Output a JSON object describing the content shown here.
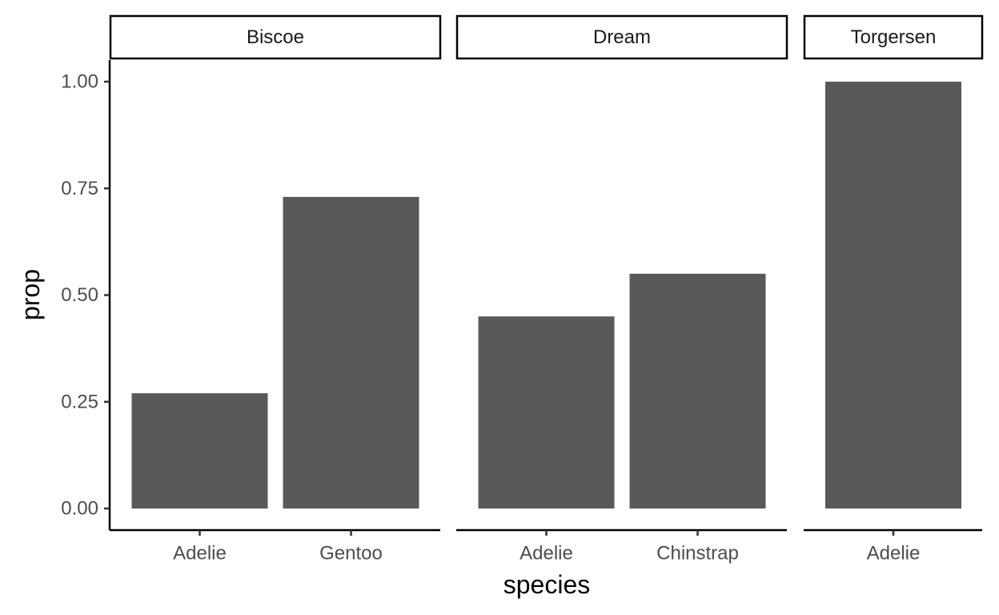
{
  "chart_data": {
    "type": "bar",
    "faceted": true,
    "xlabel": "species",
    "ylabel": "prop",
    "ylim": [
      0,
      1
    ],
    "yticks": [
      "0.00",
      "0.25",
      "0.50",
      "0.75",
      "1.00"
    ],
    "ytick_values": [
      0,
      0.25,
      0.5,
      0.75,
      1.0
    ],
    "grid": false,
    "bar_color": "#595959",
    "panels": [
      {
        "facet": "Biscoe",
        "categories": [
          "Adelie",
          "Gentoo"
        ],
        "values": [
          0.27,
          0.73
        ]
      },
      {
        "facet": "Dream",
        "categories": [
          "Adelie",
          "Chinstrap"
        ],
        "values": [
          0.45,
          0.55
        ]
      },
      {
        "facet": "Torgersen",
        "categories": [
          "Adelie"
        ],
        "values": [
          1.0
        ]
      }
    ]
  }
}
